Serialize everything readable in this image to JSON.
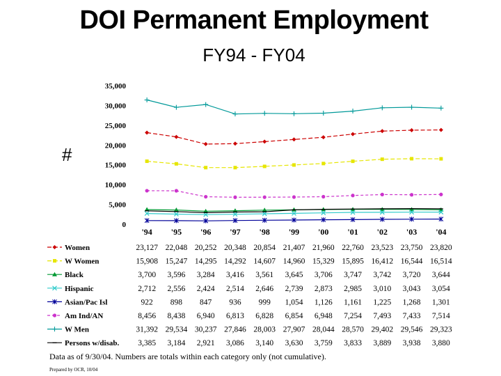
{
  "chart_data": {
    "type": "line",
    "title": "DOI Permanent Employment",
    "subtitle": "FY94 - FY04",
    "ylabel": "#",
    "xlabel": "",
    "categories": [
      "'94",
      "'95",
      "'96",
      "'97",
      "'98",
      "'99",
      "'00",
      "'01",
      "'02",
      "'03",
      "'04"
    ],
    "ylim": [
      0,
      35000
    ],
    "yticks": [
      "0",
      "5,000",
      "10,000",
      "15,000",
      "20,000",
      "25,000",
      "30,000",
      "35,000"
    ],
    "ytick_values": [
      0,
      5000,
      10000,
      15000,
      20000,
      25000,
      30000,
      35000
    ],
    "grid": false,
    "legend": "data-table",
    "series": [
      {
        "name": "Women",
        "color": "#cc0000",
        "marker": "diamond",
        "dash": "6,3",
        "values": [
          23127,
          22048,
          20252,
          20348,
          20854,
          21407,
          21960,
          22760,
          23523,
          23750,
          23820
        ],
        "labels": [
          "23,127",
          "22,048",
          "20,252",
          "20,348",
          "20,854",
          "21,407",
          "21,960",
          "22,760",
          "23,523",
          "23,750",
          "23,820"
        ]
      },
      {
        "name": "W Women",
        "color": "#e6e600",
        "marker": "square",
        "dash": "6,3",
        "values": [
          15908,
          15247,
          14295,
          14292,
          14607,
          14960,
          15329,
          15895,
          16412,
          16544,
          16514
        ],
        "labels": [
          "15,908",
          "15,247",
          "14,295",
          "14,292",
          "14,607",
          "14,960",
          "15,329",
          "15,895",
          "16,412",
          "16,544",
          "16,514"
        ]
      },
      {
        "name": "Black",
        "color": "#009933",
        "marker": "triangle",
        "dash": "",
        "values": [
          3700,
          3596,
          3284,
          3416,
          3561,
          3645,
          3706,
          3747,
          3742,
          3720,
          3644
        ],
        "labels": [
          "3,700",
          "3,596",
          "3,284",
          "3,416",
          "3,561",
          "3,645",
          "3,706",
          "3,747",
          "3,742",
          "3,720",
          "3,644"
        ]
      },
      {
        "name": "Hispanic",
        "color": "#33cccc",
        "marker": "x",
        "dash": "",
        "values": [
          2712,
          2556,
          2424,
          2514,
          2646,
          2739,
          2873,
          2985,
          3010,
          3043,
          3054
        ],
        "labels": [
          "2,712",
          "2,556",
          "2,424",
          "2,514",
          "2,646",
          "2,739",
          "2,873",
          "2,985",
          "3,010",
          "3,043",
          "3,054"
        ]
      },
      {
        "name": "Asian/Pac Isl",
        "color": "#000099",
        "marker": "star",
        "dash": "",
        "values": [
          922,
          898,
          847,
          936,
          999,
          1054,
          1126,
          1161,
          1225,
          1268,
          1301
        ],
        "labels": [
          "922",
          "898",
          "847",
          "936",
          "999",
          "1,054",
          "1,126",
          "1,161",
          "1,225",
          "1,268",
          "1,301"
        ]
      },
      {
        "name": "Am Ind/AN",
        "color": "#cc33cc",
        "marker": "circle",
        "dash": "4,3",
        "values": [
          8456,
          8438,
          6940,
          6813,
          6828,
          6854,
          6948,
          7254,
          7493,
          7433,
          7514
        ],
        "labels": [
          "8,456",
          "8,438",
          "6,940",
          "6,813",
          "6,828",
          "6,854",
          "6,948",
          "7,254",
          "7,493",
          "7,433",
          "7,514"
        ]
      },
      {
        "name": "W Men",
        "color": "#009999",
        "marker": "plus",
        "dash": "",
        "values": [
          31392,
          29534,
          30237,
          27846,
          28003,
          27907,
          28044,
          28570,
          29402,
          29546,
          29323
        ],
        "labels": [
          "31,392",
          "29,534",
          "30,237",
          "27,846",
          "28,003",
          "27,907",
          "28,044",
          "28,570",
          "29,402",
          "29,546",
          "29,323"
        ]
      },
      {
        "name": "Persons w/disab.",
        "color": "#000000",
        "marker": "dash",
        "dash": "",
        "values": [
          3385,
          3184,
          2921,
          3086,
          3140,
          3630,
          3759,
          3833,
          3889,
          3938,
          3880
        ],
        "labels": [
          "3,385",
          "3,184",
          "2,921",
          "3,086",
          "3,140",
          "3,630",
          "3,759",
          "3,833",
          "3,889",
          "3,938",
          "3,880"
        ]
      }
    ]
  },
  "footer": {
    "note": "Data as of 9/30/04.  Numbers are totals within each category only (not cumulative).",
    "prepared": "Prepared by OCR, 10/04"
  }
}
